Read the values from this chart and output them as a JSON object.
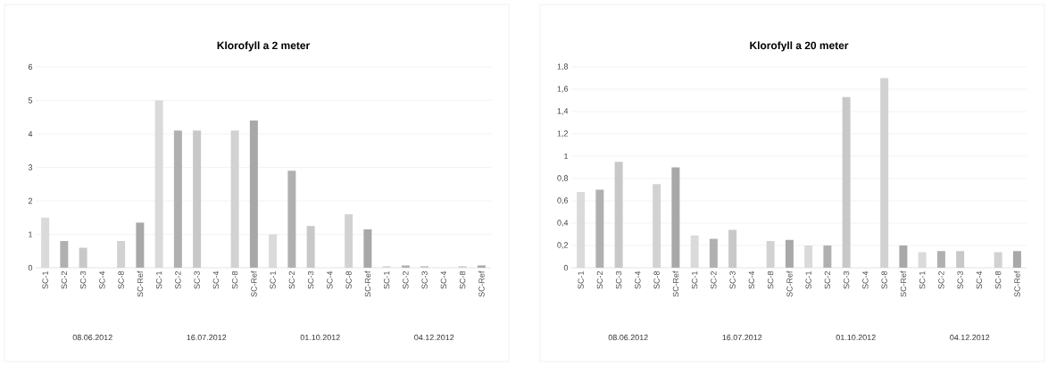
{
  "chart_data": [
    {
      "type": "bar",
      "title": "Klorofyll a 2 meter",
      "categories": [
        "SC-1",
        "SC-2",
        "SC-3",
        "SC-4",
        "SC-8",
        "SC-Ref",
        "SC-1",
        "SC-2",
        "SC-3",
        "SC-4",
        "SC-8",
        "SC-Ref",
        "SC-1",
        "SC-2",
        "SC-3",
        "SC-4",
        "SC-8",
        "SC-Ref",
        "SC-1",
        "SC-2",
        "SC-3",
        "SC-4",
        "SC-8",
        "SC-Ref"
      ],
      "values": [
        1.5,
        0.8,
        0.6,
        null,
        0.8,
        1.35,
        5.0,
        4.1,
        4.1,
        null,
        4.1,
        4.4,
        1.0,
        2.9,
        1.25,
        null,
        1.6,
        1.15,
        0.05,
        0.07,
        0.05,
        null,
        0.05,
        0.07
      ],
      "colors": [
        "#dadada",
        "#b0b0b0",
        "#c8c8c8",
        "#dadada",
        "#d2d2d2",
        "#a8a8a8",
        "#dadada",
        "#b0b0b0",
        "#c8c8c8",
        "#dadada",
        "#d2d2d2",
        "#a8a8a8",
        "#dadada",
        "#b0b0b0",
        "#c8c8c8",
        "#dadada",
        "#d2d2d2",
        "#a8a8a8",
        "#dadada",
        "#b0b0b0",
        "#c8c8c8",
        "#dadada",
        "#d2d2d2",
        "#a8a8a8"
      ],
      "annotations": [
        "08.06.2012",
        "16.07.2012",
        "01.10.2012",
        "04.12.2012"
      ],
      "ylim": [
        0,
        6
      ],
      "yticks": [
        0,
        1,
        2,
        3,
        4,
        5,
        6
      ],
      "grid": "y"
    },
    {
      "type": "bar",
      "title": "Klorofyll a 20 meter",
      "categories": [
        "SC-1",
        "SC-2",
        "SC-3",
        "SC-4",
        "SC-8",
        "SC-Ref",
        "SC-1",
        "SC-2",
        "SC-3",
        "SC-4",
        "SC-8",
        "SC-Ref",
        "SC-1",
        "SC-2",
        "SC-3",
        "SC-4",
        "SC-8",
        "SC-Ref",
        "SC-1",
        "SC-2",
        "SC-3",
        "SC-4",
        "SC-8",
        "SC-Ref"
      ],
      "values": [
        0.68,
        0.7,
        0.95,
        null,
        0.75,
        0.9,
        0.29,
        0.26,
        0.34,
        null,
        0.24,
        0.25,
        0.2,
        0.2,
        1.53,
        null,
        1.7,
        0.2,
        0.14,
        0.15,
        0.15,
        null,
        0.14,
        0.15
      ],
      "colors": [
        "#dadada",
        "#b0b0b0",
        "#c8c8c8",
        "#dadada",
        "#d2d2d2",
        "#a8a8a8",
        "#dadada",
        "#b0b0b0",
        "#c8c8c8",
        "#dadada",
        "#d2d2d2",
        "#a8a8a8",
        "#dadada",
        "#b0b0b0",
        "#c8c8c8",
        "#dadada",
        "#d2d2d2",
        "#a8a8a8",
        "#dadada",
        "#b0b0b0",
        "#c8c8c8",
        "#dadada",
        "#d2d2d2",
        "#a8a8a8"
      ],
      "annotations": [
        "08.06.2012",
        "16.07.2012",
        "01.10.2012",
        "04.12.2012"
      ],
      "ylim": [
        0,
        1.8
      ],
      "yticks": [
        {
          "value": 0,
          "label": "0"
        },
        {
          "value": 0.2,
          "label": "0,2"
        },
        {
          "value": 0.4,
          "label": "0,4"
        },
        {
          "value": 0.6,
          "label": "0,6"
        },
        {
          "value": 0.8,
          "label": "0,8"
        },
        {
          "value": 1,
          "label": "1"
        },
        {
          "value": 1.2,
          "label": "1,2"
        },
        {
          "value": 1.4,
          "label": "1,4"
        },
        {
          "value": 1.6,
          "label": "1,6"
        },
        {
          "value": 1.8,
          "label": "1,8"
        }
      ],
      "grid": "y"
    }
  ]
}
